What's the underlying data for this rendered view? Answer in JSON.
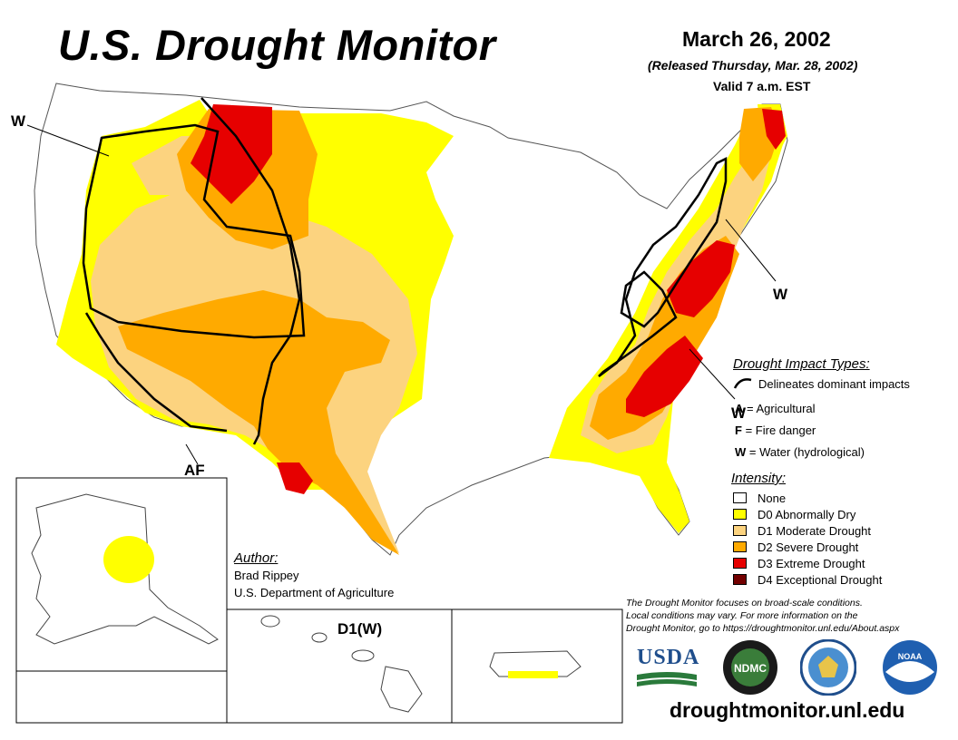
{
  "header": {
    "title": "U.S. Drought Monitor",
    "date": "March 26, 2002",
    "released": "(Released Thursday, Mar. 28, 2002)",
    "valid": "Valid 7 a.m. EST"
  },
  "map_labels": {
    "west_coast": "W",
    "northeast": "W",
    "southeast": "W",
    "southwest": "AF",
    "hawaii": "D1(W)"
  },
  "impact_legend": {
    "heading": "Drought Impact Types:",
    "line_desc": "Delineates dominant impacts",
    "agricultural_key": "A",
    "agricultural_label": "= Agricultural",
    "fire_key": "F",
    "fire_label": "= Fire danger",
    "water_key": "W",
    "water_label": "= Water (hydrological)"
  },
  "intensity_legend": {
    "heading": "Intensity:",
    "items": [
      {
        "label": "None",
        "color": "#ffffff"
      },
      {
        "label": "D0 Abnormally Dry",
        "color": "#ffff00"
      },
      {
        "label": "D1 Moderate Drought",
        "color": "#fcd37f"
      },
      {
        "label": "D2 Severe Drought",
        "color": "#ffaa00"
      },
      {
        "label": "D3 Extreme Drought",
        "color": "#e60000"
      },
      {
        "label": "D4 Exceptional Drought",
        "color": "#730000"
      }
    ]
  },
  "author": {
    "heading": "Author:",
    "name": "Brad Rippey",
    "org": "U.S. Department of Agriculture"
  },
  "note": {
    "line1": "The Drought Monitor focuses on broad-scale conditions.",
    "line2": "Local conditions may vary. For more information on the",
    "line3": "Drought Monitor, go to https://droughtmonitor.unl.edu/About.aspx"
  },
  "logos": {
    "usda": "USDA",
    "ndmc": "NDMC",
    "noaa": "NOAA"
  },
  "footer": {
    "url": "droughtmonitor.unl.edu"
  }
}
